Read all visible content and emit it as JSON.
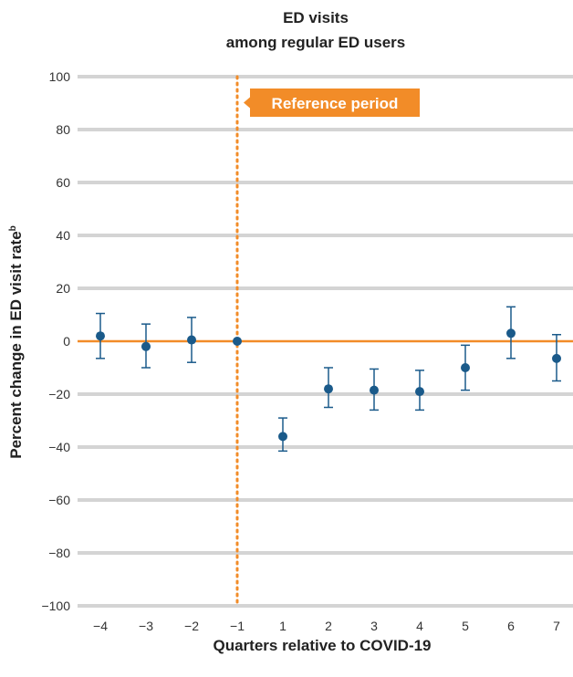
{
  "chart_data": {
    "type": "scatter",
    "title": [
      "ED visits",
      "among regular ED users"
    ],
    "xlabel": "Quarters relative to COVID-19",
    "ylabel": "Percent change in ED visit rate",
    "ylabel_superscript": "b",
    "x": [
      -4,
      -3,
      -2,
      -1,
      1,
      2,
      3,
      4,
      5,
      6,
      7
    ],
    "x_tick_labels": [
      "−4",
      "−3",
      "−2",
      "−1",
      "1",
      "2",
      "3",
      "4",
      "5",
      "6",
      "7"
    ],
    "y_ticks": [
      100,
      80,
      60,
      40,
      20,
      0,
      -20,
      -40,
      -60,
      -80,
      -100
    ],
    "y_tick_labels": [
      "100",
      "80",
      "60",
      "40",
      "20",
      "0",
      "−20",
      "−40",
      "−60",
      "−80",
      "−100"
    ],
    "ylim": [
      -100,
      100
    ],
    "grid": true,
    "series": [
      {
        "values": [
          2,
          -2,
          0.5,
          0,
          -36,
          -18,
          -18.5,
          -19,
          -10,
          3,
          -6.5
        ],
        "ci_low": [
          -6.5,
          -10,
          -8,
          0,
          -41.5,
          -25,
          -26,
          -26,
          -18.5,
          -6.5,
          -15
        ],
        "ci_high": [
          10.5,
          6.5,
          9,
          0,
          -29,
          -10,
          -10.5,
          -11,
          -1.5,
          13,
          2.5
        ]
      }
    ],
    "reference_line": {
      "x": -1,
      "label": "Reference period"
    },
    "colors": {
      "points": "#1a5a8a",
      "zero_line": "#f28c28",
      "reference": "#f28c28",
      "grid": "#d4d4d4"
    }
  }
}
